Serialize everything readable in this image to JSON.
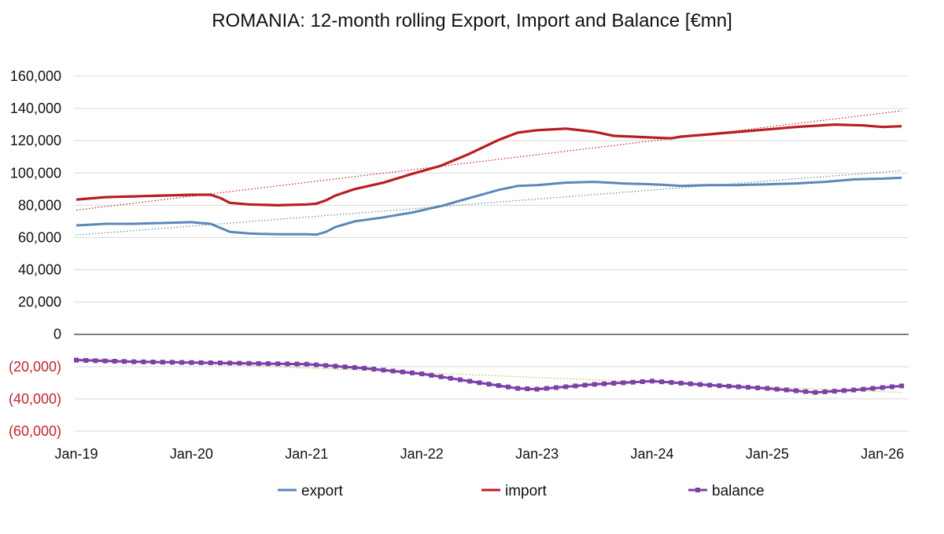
{
  "chart_data": {
    "type": "line",
    "title": "ROMANIA: 12-month rolling Export, Import and Balance [€mn]",
    "xlabel": "",
    "ylabel": "",
    "x_ticks": [
      "Jan-19",
      "Jan-20",
      "Jan-21",
      "Jan-22",
      "Jan-23",
      "Jan-24",
      "Jan-25",
      "Jan-26"
    ],
    "y_ticks": [
      {
        "value": 160000,
        "label": "160,000"
      },
      {
        "value": 140000,
        "label": "140,000"
      },
      {
        "value": 120000,
        "label": "120,000"
      },
      {
        "value": 100000,
        "label": "100,000"
      },
      {
        "value": 80000,
        "label": "80,000"
      },
      {
        "value": 60000,
        "label": "60,000"
      },
      {
        "value": 40000,
        "label": "40,000"
      },
      {
        "value": 20000,
        "label": "20,000"
      },
      {
        "value": 0,
        "label": "0"
      },
      {
        "value": -20000,
        "label": "(20,000)"
      },
      {
        "value": -40000,
        "label": "(40,000)"
      },
      {
        "value": -60000,
        "label": "(60,000)"
      }
    ],
    "ylim": [
      -60000,
      160000
    ],
    "x_range": [
      "Jan-19",
      "Mar-26"
    ],
    "grid": true,
    "legend_position": "bottom",
    "colors": {
      "export": "#5b87b8",
      "import": "#b81d24",
      "balance": "#7d3fa8",
      "negative_tick": "#c0272d",
      "grid": "#d9d9d9"
    },
    "series": [
      {
        "name": "export",
        "anchors": [
          [
            "Jan-19",
            67500
          ],
          [
            "Apr-19",
            68500
          ],
          [
            "Jul-19",
            68500
          ],
          [
            "Oct-19",
            69000
          ],
          [
            "Jan-20",
            69500
          ],
          [
            "Mar-20",
            68500
          ],
          [
            "Apr-20",
            66000
          ],
          [
            "May-20",
            63500
          ],
          [
            "Jul-20",
            62500
          ],
          [
            "Oct-20",
            62000
          ],
          [
            "Jan-21",
            62000
          ],
          [
            "Feb-21",
            61800
          ],
          [
            "Mar-21",
            63500
          ],
          [
            "Apr-21",
            66500
          ],
          [
            "Jun-21",
            70000
          ],
          [
            "Sep-21",
            72500
          ],
          [
            "Dec-21",
            75500
          ],
          [
            "Mar-22",
            79500
          ],
          [
            "Jun-22",
            84500
          ],
          [
            "Sep-22",
            89500
          ],
          [
            "Nov-22",
            92000
          ],
          [
            "Jan-23",
            92500
          ],
          [
            "Apr-23",
            94000
          ],
          [
            "Jul-23",
            94500
          ],
          [
            "Oct-23",
            93500
          ],
          [
            "Jan-24",
            93000
          ],
          [
            "Apr-24",
            92000
          ],
          [
            "Jul-24",
            92500
          ],
          [
            "Oct-24",
            92500
          ],
          [
            "Jan-25",
            93000
          ],
          [
            "Apr-25",
            93500
          ],
          [
            "Jul-25",
            94500
          ],
          [
            "Oct-25",
            96000
          ],
          [
            "Jan-26",
            96500
          ],
          [
            "Mar-26",
            97000
          ]
        ]
      },
      {
        "name": "import",
        "anchors": [
          [
            "Jan-19",
            83500
          ],
          [
            "Apr-19",
            85000
          ],
          [
            "Jul-19",
            85500
          ],
          [
            "Oct-19",
            86000
          ],
          [
            "Jan-20",
            86500
          ],
          [
            "Mar-20",
            86500
          ],
          [
            "Apr-20",
            84500
          ],
          [
            "May-20",
            81500
          ],
          [
            "Jul-20",
            80500
          ],
          [
            "Oct-20",
            80000
          ],
          [
            "Jan-21",
            80500
          ],
          [
            "Feb-21",
            81000
          ],
          [
            "Mar-21",
            83000
          ],
          [
            "Apr-21",
            86000
          ],
          [
            "Jun-21",
            90000
          ],
          [
            "Sep-21",
            94000
          ],
          [
            "Dec-21",
            99500
          ],
          [
            "Mar-22",
            104500
          ],
          [
            "Jun-22",
            112000
          ],
          [
            "Sep-22",
            120500
          ],
          [
            "Nov-22",
            125000
          ],
          [
            "Jan-23",
            126500
          ],
          [
            "Apr-23",
            127500
          ],
          [
            "Jul-23",
            125500
          ],
          [
            "Sep-23",
            123000
          ],
          [
            "Jan-24",
            122000
          ],
          [
            "Mar-24",
            121500
          ],
          [
            "Apr-24",
            122500
          ],
          [
            "Jul-24",
            124000
          ],
          [
            "Oct-24",
            125500
          ],
          [
            "Jan-25",
            127000
          ],
          [
            "Apr-25",
            128500
          ],
          [
            "Aug-25",
            130000
          ],
          [
            "Nov-25",
            129500
          ],
          [
            "Jan-26",
            128500
          ],
          [
            "Mar-26",
            129000
          ]
        ]
      },
      {
        "name": "balance",
        "anchors": [
          [
            "Jan-19",
            -16000
          ],
          [
            "Jul-19",
            -17000
          ],
          [
            "Jan-20",
            -17500
          ],
          [
            "Jul-20",
            -18000
          ],
          [
            "Jan-21",
            -18500
          ],
          [
            "Jul-21",
            -21000
          ],
          [
            "Jan-22",
            -24500
          ],
          [
            "Jul-22",
            -30000
          ],
          [
            "Nov-22",
            -33500
          ],
          [
            "Jan-23",
            -34000
          ],
          [
            "Jul-23",
            -31000
          ],
          [
            "Jan-24",
            -29000
          ],
          [
            "Jul-24",
            -31500
          ],
          [
            "Jan-25",
            -33500
          ],
          [
            "Jun-25",
            -36000
          ],
          [
            "Oct-25",
            -34500
          ],
          [
            "Mar-26",
            -32000
          ]
        ]
      }
    ],
    "trendlines": [
      {
        "series": "export",
        "from": [
          "Jan-19",
          61500
        ],
        "to": [
          "Mar-26",
          101500
        ]
      },
      {
        "series": "import",
        "from": [
          "Jan-19",
          77000
        ],
        "to": [
          "Mar-26",
          138500
        ]
      },
      {
        "series": "balance",
        "from": [
          "Jan-19",
          -15000
        ],
        "to": [
          "Mar-26",
          -36000
        ]
      }
    ]
  }
}
